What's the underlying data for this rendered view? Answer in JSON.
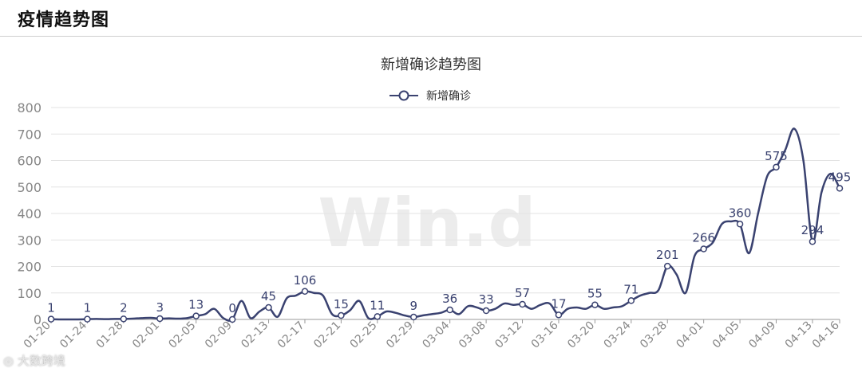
{
  "header": {
    "title": "疫情趋势图"
  },
  "watermark": "Win.d",
  "credit": "大数跨境",
  "colors": {
    "series": "#3a4270",
    "grid": "#e3e3e3",
    "axis": "#999999",
    "label": "#3a4270"
  },
  "chart_data": {
    "type": "line",
    "title": "新增确诊趋势图",
    "legend": {
      "position": "top-center",
      "entries": [
        "新增确诊"
      ]
    },
    "ylim": [
      0,
      800
    ],
    "yticks": [
      0,
      100,
      200,
      300,
      400,
      500,
      600,
      700,
      800
    ],
    "grid": true,
    "x_tick_labels": [
      "01-20",
      "01-24",
      "01-28",
      "02-01",
      "02-05",
      "02-09",
      "02-13",
      "02-17",
      "02-21",
      "02-25",
      "02-29",
      "03-04",
      "03-08",
      "03-12",
      "03-16",
      "03-20",
      "03-24",
      "03-28",
      "04-01",
      "04-05",
      "04-09",
      "04-13",
      "04-16"
    ],
    "series": [
      {
        "name": "新增确诊",
        "x": [
          "01-20",
          "01-21",
          "01-22",
          "01-23",
          "01-24",
          "01-25",
          "01-26",
          "01-27",
          "01-28",
          "01-29",
          "01-30",
          "01-31",
          "02-01",
          "02-02",
          "02-03",
          "02-04",
          "02-05",
          "02-06",
          "02-07",
          "02-08",
          "02-09",
          "02-10",
          "02-11",
          "02-12",
          "02-13",
          "02-14",
          "02-15",
          "02-16",
          "02-17",
          "02-18",
          "02-19",
          "02-20",
          "02-21",
          "02-22",
          "02-23",
          "02-24",
          "02-25",
          "02-26",
          "02-27",
          "02-28",
          "02-29",
          "03-01",
          "03-02",
          "03-03",
          "03-04",
          "03-05",
          "03-06",
          "03-07",
          "03-08",
          "03-09",
          "03-10",
          "03-11",
          "03-12",
          "03-13",
          "03-14",
          "03-15",
          "03-16",
          "03-17",
          "03-18",
          "03-19",
          "03-20",
          "03-21",
          "03-22",
          "03-23",
          "03-24",
          "03-25",
          "03-26",
          "03-27",
          "03-28",
          "03-29",
          "03-30",
          "03-31",
          "04-01",
          "04-02",
          "04-03",
          "04-04",
          "04-05",
          "04-06",
          "04-07",
          "04-08",
          "04-09",
          "04-10",
          "04-11",
          "04-12",
          "04-13",
          "04-14",
          "04-15",
          "04-16"
        ],
        "values": [
          1,
          0,
          0,
          0,
          1,
          2,
          1,
          2,
          2,
          3,
          5,
          6,
          3,
          4,
          3,
          5,
          13,
          20,
          40,
          5,
          0,
          70,
          5,
          30,
          45,
          10,
          80,
          90,
          106,
          100,
          90,
          20,
          15,
          35,
          70,
          5,
          11,
          30,
          25,
          15,
          9,
          15,
          20,
          25,
          36,
          20,
          50,
          45,
          33,
          40,
          60,
          55,
          57,
          40,
          55,
          60,
          17,
          40,
          45,
          40,
          55,
          40,
          45,
          50,
          71,
          90,
          100,
          110,
          201,
          170,
          100,
          240,
          266,
          290,
          360,
          370,
          360,
          250,
          400,
          540,
          575,
          640,
          720,
          600,
          294,
          480,
          550,
          495
        ]
      }
    ],
    "point_labels": [
      {
        "date": "01-20",
        "value": 1
      },
      {
        "date": "01-24",
        "value": 1
      },
      {
        "date": "01-28",
        "value": 2
      },
      {
        "date": "02-01",
        "value": 3
      },
      {
        "date": "02-05",
        "value": 13
      },
      {
        "date": "02-09",
        "value": 0
      },
      {
        "date": "02-13",
        "value": 45
      },
      {
        "date": "02-17",
        "value": 106
      },
      {
        "date": "02-21",
        "value": 15
      },
      {
        "date": "02-25",
        "value": 11
      },
      {
        "date": "02-29",
        "value": 9
      },
      {
        "date": "03-04",
        "value": 36
      },
      {
        "date": "03-08",
        "value": 33
      },
      {
        "date": "03-12",
        "value": 57
      },
      {
        "date": "03-16",
        "value": 17
      },
      {
        "date": "03-20",
        "value": 55
      },
      {
        "date": "03-24",
        "value": 71
      },
      {
        "date": "03-28",
        "value": 201
      },
      {
        "date": "04-01",
        "value": 266
      },
      {
        "date": "04-05",
        "value": 360
      },
      {
        "date": "04-09",
        "value": 575
      },
      {
        "date": "04-13",
        "value": 294
      },
      {
        "date": "04-16",
        "value": 495
      }
    ]
  }
}
